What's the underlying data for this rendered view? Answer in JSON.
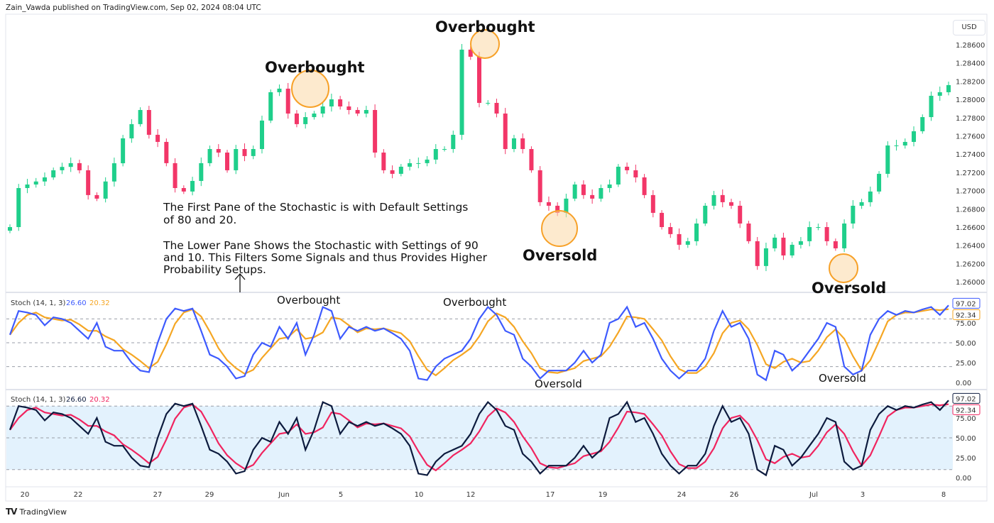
{
  "header": {
    "published": "Zain_Vawda published on TradingView.com, Sep 02, 2024 08:04 UTC"
  },
  "currency_button": "USD",
  "footer": {
    "brand": "TradingView",
    "logo_icon": "tradingview-logo-icon"
  },
  "colors": {
    "up": "#1fcf8b",
    "down": "#f23668",
    "k_upper": "#3d5afe",
    "d_upper": "#f5a623",
    "k_lower": "#0d1b3e",
    "d_lower": "#f0245f",
    "band_fill": "#e3f2fd",
    "circle": "#f7a128"
  },
  "annotations": {
    "overbought_1": "Overbought",
    "overbought_2": "Overbought",
    "oversold_1": "Oversold",
    "oversold_2": "Oversold",
    "stoch_overbought_1": "Overbought",
    "stoch_overbought_2": "Overbought",
    "stoch_oversold_1": "Oversold",
    "stoch_oversold_2": "Oversold",
    "note_lines": [
      "The First Pane of the Stochastic is with Default Settings",
      "of 80 and 20.",
      "",
      "The Lower Pane Shows the Stochastic with Settings of 90",
      "and 10. This Filters Some Signals and thus Provides Higher",
      "Probability Setups."
    ]
  },
  "chart_data": [
    {
      "type": "candlestick",
      "ylim": [
        1.2595,
        1.2875
      ],
      "y_ticks": [
        "1.28600",
        "1.28400",
        "1.28200",
        "1.28000",
        "1.27800",
        "1.27600",
        "1.27400",
        "1.27200",
        "1.27000",
        "1.26800",
        "1.26600",
        "1.26400",
        "1.26200",
        "1.26000"
      ],
      "x_ticks": [
        "20",
        "22",
        "27",
        "29",
        "Jun",
        "5",
        "10",
        "12",
        "17",
        "19",
        "24",
        "26",
        "Jul",
        "3",
        "8"
      ],
      "close": [
        1.266,
        1.27028,
        1.27067,
        1.271,
        1.27145,
        1.27223,
        1.2726,
        1.27301,
        1.27223,
        1.26951,
        1.26912,
        1.271,
        1.273,
        1.27573,
        1.27729,
        1.27884,
        1.27612,
        1.27534,
        1.27301,
        1.27028,
        1.2699,
        1.27106,
        1.27301,
        1.27456,
        1.27417,
        1.27223,
        1.27456,
        1.27379,
        1.27456,
        1.27768,
        1.28079,
        1.28118,
        1.27845,
        1.27729,
        1.27806,
        1.27845,
        1.27923,
        1.28001,
        1.27923,
        1.27884,
        1.27845,
        1.27884,
        1.27417,
        1.27223,
        1.27184,
        1.27262,
        1.27301,
        1.27301,
        1.2734,
        1.27456,
        1.27456,
        1.27612,
        1.28546,
        1.28468,
        1.27962,
        1.27962,
        1.27845,
        1.27456,
        1.27573,
        1.27456,
        1.27223,
        1.26873,
        1.26834,
        1.26756,
        1.26912,
        1.27067,
        1.26951,
        1.26912,
        1.27028,
        1.27067,
        1.27262,
        1.27223,
        1.27145,
        1.26951,
        1.26756,
        1.266,
        1.26523,
        1.26406,
        1.26445,
        1.26639,
        1.26834,
        1.26951,
        1.26873,
        1.26834,
        1.26639,
        1.26445,
        1.26173,
        1.26367,
        1.26484,
        1.26289,
        1.26406,
        1.26445,
        1.266,
        1.266,
        1.26445,
        1.26367,
        1.26639,
        1.26834,
        1.26873,
        1.2699,
        1.27184,
        1.27495,
        1.27495,
        1.27534,
        1.27651,
        1.27806,
        1.2804,
        1.28079,
        1.28157
      ]
    },
    {
      "type": "line",
      "legend": "Stoch (14, 1, 3)",
      "legend_values": [
        "26.60",
        "20.32"
      ],
      "last_values": [
        "97.02",
        "92.34"
      ],
      "ylim": [
        0,
        100
      ],
      "levels": [
        80,
        20
      ],
      "y_ticks": [
        "75.00",
        "50.00",
        "25.00",
        "0.00"
      ],
      "k": [
        60,
        90,
        88,
        85,
        72,
        82,
        80,
        75,
        65,
        55,
        75,
        45,
        40,
        40,
        25,
        15,
        13,
        50,
        80,
        93,
        90,
        93,
        65,
        35,
        30,
        20,
        5,
        8,
        35,
        50,
        45,
        70,
        55,
        75,
        35,
        60,
        95,
        90,
        55,
        70,
        65,
        70,
        65,
        68,
        62,
        55,
        40,
        5,
        3,
        20,
        30,
        35,
        40,
        55,
        80,
        95,
        85,
        65,
        60,
        30,
        20,
        5,
        15,
        15,
        15,
        25,
        40,
        25,
        35,
        75,
        80,
        95,
        70,
        75,
        55,
        30,
        15,
        5,
        15,
        15,
        30,
        65,
        90,
        70,
        75,
        55,
        10,
        3,
        40,
        35,
        15,
        25,
        40,
        55,
        75,
        70,
        20,
        10,
        15,
        60,
        80,
        90,
        85,
        90,
        88,
        92,
        95,
        85,
        97.02
      ],
      "d": [
        60,
        75,
        85,
        88,
        82,
        80,
        78,
        79,
        73,
        65,
        65,
        58,
        53,
        42,
        35,
        27,
        18,
        26,
        48,
        74,
        88,
        92,
        83,
        64,
        43,
        28,
        18,
        11,
        16,
        31,
        43,
        55,
        57,
        67,
        55,
        57,
        63,
        82,
        80,
        72,
        63,
        68,
        67,
        68,
        65,
        62,
        52,
        33,
        16,
        9,
        18,
        28,
        35,
        43,
        58,
        77,
        87,
        82,
        70,
        52,
        37,
        18,
        13,
        12,
        15,
        18,
        27,
        30,
        33,
        45,
        63,
        83,
        82,
        80,
        67,
        53,
        33,
        17,
        12,
        12,
        20,
        37,
        62,
        75,
        78,
        67,
        47,
        23,
        18,
        26,
        30,
        25,
        27,
        40,
        57,
        67,
        55,
        33,
        15,
        28,
        52,
        77,
        85,
        88,
        88,
        90,
        92,
        91,
        92.34
      ]
    },
    {
      "type": "line",
      "legend": "Stoch (14, 1, 3)",
      "legend_values": [
        "26.60",
        "20.32"
      ],
      "last_values": [
        "97.02",
        "92.34"
      ],
      "ylim": [
        0,
        100
      ],
      "levels": [
        90,
        10
      ],
      "band_fill": true,
      "y_ticks": [
        "75.00",
        "50.00",
        "25.00",
        "0.00"
      ]
    }
  ]
}
